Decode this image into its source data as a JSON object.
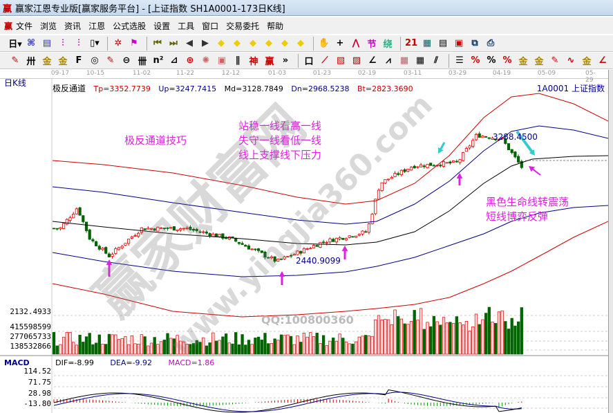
{
  "window": {
    "title": "赢家江恩专业版[赢家服务平台] - [上证指数  SH1A0001-173日K线]",
    "logo": "赢"
  },
  "menu": [
    "文件",
    "浏览",
    "资讯",
    "江恩",
    "公式选股",
    "设置",
    "工具",
    "窗口",
    "交易委托",
    "帮助"
  ],
  "toolbar1": [
    {
      "name": "period-day-icon",
      "g": "日▾",
      "c": "#000"
    },
    {
      "name": "chart-type-icon",
      "g": "⌘",
      "c": "#33c"
    },
    {
      "name": "notes-icon",
      "g": "▤",
      "c": "#33c"
    },
    {
      "name": "indicator-3-icon",
      "g": "⫶",
      "c": "#c0c"
    },
    {
      "name": "indicator-9-icon",
      "g": "⫶",
      "c": "#c0c"
    },
    {
      "name": "candle-type-icon",
      "g": "▯▾",
      "c": "#000"
    },
    {
      "name": "gann-icon",
      "g": "✲",
      "c": "#c00"
    },
    {
      "name": "flag-icon",
      "g": "⚑",
      "c": "#c0c"
    },
    {
      "name": "first-icon",
      "g": "⏮",
      "c": "#660"
    },
    {
      "name": "last-icon",
      "g": "⏭",
      "c": "#660"
    },
    {
      "name": "prev-icon",
      "g": "◀",
      "c": "#333"
    },
    {
      "name": "next-icon",
      "g": "▶",
      "c": "#333"
    },
    {
      "name": "move-left-icon",
      "g": "◆",
      "c": "#ec0"
    },
    {
      "name": "move-right-icon",
      "g": "◆",
      "c": "#ec0"
    },
    {
      "name": "expand-icon",
      "g": "◆",
      "c": "#ec0"
    },
    {
      "name": "shrink-icon",
      "g": "◆",
      "c": "#ec0"
    },
    {
      "name": "zoom-in-icon",
      "g": "◆",
      "c": "#ec0"
    },
    {
      "name": "zoom-out-icon",
      "g": "◆",
      "c": "#ec0"
    },
    {
      "name": "hand-icon",
      "g": "✋",
      "c": "#000"
    },
    {
      "name": "crosshair-icon",
      "g": "+",
      "c": "#000"
    },
    {
      "name": "line-draw-icon",
      "g": "⋀",
      "c": "#c03"
    },
    {
      "name": "festival-icon",
      "g": "节",
      "c": "#c0c"
    },
    {
      "name": "cycle-icon",
      "g": "绕",
      "c": "#3a8"
    },
    {
      "name": "calendar-icon",
      "g": "21",
      "c": "#c00"
    },
    {
      "name": "calculator-icon",
      "g": "▦",
      "c": "#066"
    },
    {
      "name": "report-icon",
      "g": "▤",
      "c": "#000"
    },
    {
      "name": "save-icon",
      "g": "▣",
      "c": "#c00"
    },
    {
      "name": "network-icon",
      "g": "⧉",
      "c": "#036"
    },
    {
      "name": "print-icon",
      "g": "⎙",
      "c": "#036"
    }
  ],
  "toolbar2": [
    {
      "name": "pen-icon",
      "g": "✎",
      "c": "#c00"
    },
    {
      "name": "hash-icon",
      "g": "卅",
      "c": "#000"
    },
    {
      "name": "gold-1-icon",
      "g": "金",
      "c": "#a80"
    },
    {
      "name": "gold-2-icon",
      "g": "金",
      "c": "#a80"
    },
    {
      "name": "fib-icon",
      "g": "F",
      "c": "#000"
    },
    {
      "name": "spiral-icon",
      "g": "◎",
      "c": "#000"
    },
    {
      "name": "ruler-icon",
      "g": "✎",
      "c": "#c00"
    },
    {
      "name": "circle-grid-icon",
      "g": "⊖",
      "c": "#000"
    },
    {
      "name": "lines-icon",
      "g": "卌",
      "c": "#000"
    },
    {
      "name": "n2-icon",
      "g": "n²",
      "c": "#000"
    },
    {
      "name": "triangle-icon",
      "g": "⊿",
      "c": "#000"
    },
    {
      "name": "target-icon",
      "g": "⊕",
      "c": "#c00"
    },
    {
      "name": "star-icon",
      "g": "✺",
      "c": "#c66"
    },
    {
      "name": "box-icon",
      "g": "▣",
      "c": "#c66"
    },
    {
      "name": "angle-icon",
      "g": "∥",
      "c": "#000"
    },
    {
      "name": "shen-icon",
      "g": "神",
      "c": "#c00"
    },
    {
      "name": "ying-icon",
      "g": "赢",
      "c": "#c00"
    },
    {
      "name": "more-icon",
      "g": "»",
      "c": "#000"
    },
    {
      "name": "frame-icon",
      "g": "口",
      "c": "#000"
    },
    {
      "name": "fan-icon",
      "g": "⟋",
      "c": "#c00"
    },
    {
      "name": "grid-box-icon",
      "g": "▧",
      "c": "#c00"
    },
    {
      "name": "grid-box-2-icon",
      "g": "▨",
      "c": "#800"
    },
    {
      "name": "angle-2-icon",
      "g": "∠",
      "c": "#000"
    },
    {
      "name": "wave-icon",
      "g": "⩘",
      "c": "#000"
    },
    {
      "name": "grid-icon",
      "g": "▦",
      "c": "#a66"
    },
    {
      "name": "grid-2-icon",
      "g": "▦",
      "c": "#000"
    },
    {
      "name": "parallel-icon",
      "g": "⫽",
      "c": "#000"
    },
    {
      "name": "ladder-icon",
      "g": "☰",
      "c": "#000"
    },
    {
      "name": "pct-line-icon",
      "g": "%",
      "c": "#c00"
    },
    {
      "name": "percent-icon",
      "g": "%",
      "c": "#000"
    },
    {
      "name": "pct-lines-icon",
      "g": "%",
      "c": "#c00"
    },
    {
      "name": "gold-circle-icon",
      "g": "金",
      "c": "#a80"
    },
    {
      "name": "gold-lines-icon",
      "g": "金",
      "c": "#a80"
    },
    {
      "name": "pen-bar-icon",
      "g": "✎",
      "c": "#c00"
    },
    {
      "name": "sine-icon",
      "g": "∿",
      "c": "#c00"
    },
    {
      "name": "gold-3-icon",
      "g": "金",
      "c": "#a80"
    },
    {
      "name": "angle-3-icon",
      "g": "∠",
      "c": "#c00"
    }
  ],
  "dates": [
    "09-17",
    "10-15",
    "11-02",
    "11-22",
    "12-12",
    "01-03",
    "01-23",
    "02-19",
    "03-11",
    "03-29",
    "04-19",
    "05-09",
    "05-29"
  ],
  "chart": {
    "period_label": "日K线",
    "indicator": "极反通道",
    "tp": "Tp=3352.7739",
    "up": "Up=3247.7415",
    "md": "Md=3128.7849",
    "dn": "Dn=2968.5238",
    "bt": "Bt=2823.3690",
    "symbol": "1A0001  上证指数",
    "low_label": "2440.9099",
    "high_label": "3288.4500",
    "vol_price_label": "2132.4933",
    "vol_axis": [
      "415598599",
      "277065733",
      "138532866"
    ],
    "colors": {
      "up": "#e00000",
      "down": "#006400",
      "tp": "#d00000",
      "up_band": "#00008b",
      "md": "#000000",
      "annotation": "#e020e0",
      "arrow_cyan": "#33cccc"
    }
  },
  "annotations": {
    "a1": "极反通道技巧",
    "a2": [
      "站稳一线看高一线",
      "失守一线看低一线",
      "线上支撑线下压力"
    ],
    "a3": [
      "黑色生命线转震荡",
      "短线博弈反弹"
    ]
  },
  "watermark": {
    "text": "赢家财富网",
    "url": "www.yingjia360.com",
    "qq": "QQ:100800360"
  },
  "macd": {
    "label": "MACD",
    "dif": "DIF=-8.99",
    "dea": "DEA=-9.92",
    "macd": "MACD=1.86",
    "axis": [
      "114.52",
      "71.75",
      "28.98",
      "-13.80"
    ]
  },
  "chart_data": {
    "type": "candlestick",
    "approx_closes": [
      [
        "09-17",
        2665
      ],
      [
        "09-27",
        2806
      ],
      [
        "10-11",
        2595
      ],
      [
        "10-19",
        2478
      ],
      [
        "11-02",
        2665
      ],
      [
        "11-22",
        2665
      ],
      [
        "12-12",
        2595
      ],
      [
        "01-03",
        2441
      ],
      [
        "01-23",
        2572
      ],
      [
        "02-19",
        2642
      ],
      [
        "02-25",
        2970
      ],
      [
        "03-11",
        3087
      ],
      [
        "03-29",
        3110
      ],
      [
        "04-08",
        3297
      ],
      [
        "04-19",
        3270
      ],
      [
        "04-30",
        3078
      ]
    ]
  }
}
